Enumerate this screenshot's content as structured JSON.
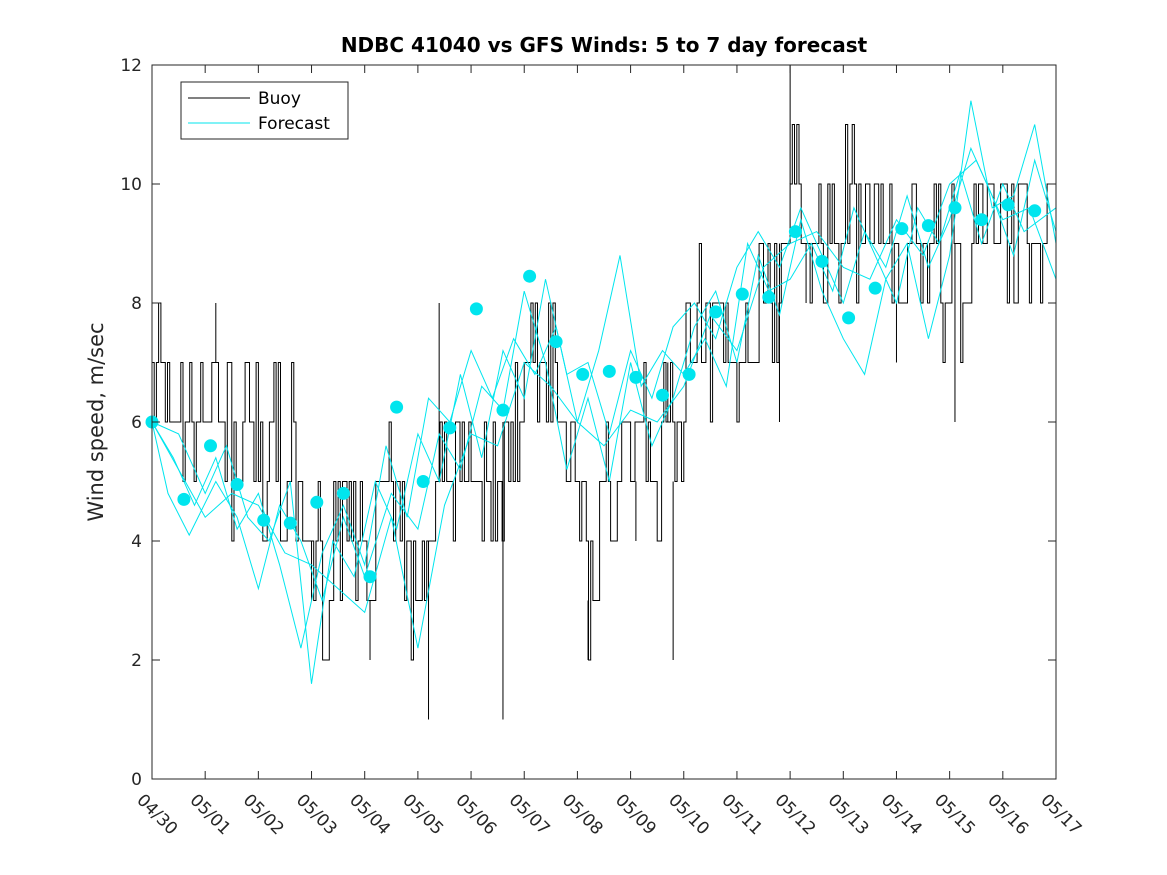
{
  "chart_data": {
    "type": "line",
    "title": "NDBC 41040 vs GFS Winds: 5 to 7 day forecast",
    "ylabel": "Wind speed, m/sec",
    "xlabel": "",
    "ylim": [
      0,
      12
    ],
    "yticks": [
      0,
      2,
      4,
      6,
      8,
      10,
      12
    ],
    "xlim_days": [
      0,
      17
    ],
    "xtick_labels": [
      "04/30",
      "05/01",
      "05/02",
      "05/03",
      "05/04",
      "05/05",
      "05/06",
      "05/07",
      "05/08",
      "05/09",
      "05/10",
      "05/11",
      "05/12",
      "05/13",
      "05/14",
      "05/15",
      "05/16",
      "05/17"
    ],
    "legend": {
      "position": "top-left",
      "entries": [
        "Buoy",
        "Forecast"
      ]
    },
    "colors": {
      "buoy": "#000000",
      "forecast": "#00e5ee",
      "axes": "#262626"
    },
    "buoy_step_levels": [
      [
        0.0,
        6
      ],
      [
        0.1,
        7
      ],
      [
        0.3,
        6
      ],
      [
        0.6,
        6
      ],
      [
        0.9,
        6
      ],
      [
        1.1,
        7
      ],
      [
        1.3,
        6
      ],
      [
        1.5,
        5
      ],
      [
        1.7,
        6
      ],
      [
        2.0,
        5
      ],
      [
        2.2,
        6
      ],
      [
        2.4,
        5
      ],
      [
        2.6,
        6
      ],
      [
        2.7,
        5
      ],
      [
        2.8,
        4
      ],
      [
        3.0,
        4
      ],
      [
        3.2,
        3
      ],
      [
        3.4,
        4
      ],
      [
        3.6,
        4
      ],
      [
        3.8,
        4
      ],
      [
        4.0,
        3
      ],
      [
        4.2,
        4
      ],
      [
        4.4,
        5
      ],
      [
        4.6,
        4
      ],
      [
        4.8,
        3
      ],
      [
        5.0,
        3
      ],
      [
        5.2,
        4
      ],
      [
        5.4,
        5
      ],
      [
        5.6,
        5
      ],
      [
        5.8,
        5
      ],
      [
        6.0,
        5
      ],
      [
        6.2,
        5
      ],
      [
        6.4,
        5
      ],
      [
        6.6,
        6
      ],
      [
        6.8,
        6
      ],
      [
        7.0,
        7
      ],
      [
        7.2,
        7
      ],
      [
        7.4,
        7
      ],
      [
        7.6,
        6
      ],
      [
        7.8,
        5
      ],
      [
        8.0,
        4
      ],
      [
        8.2,
        3
      ],
      [
        8.4,
        5
      ],
      [
        8.6,
        4
      ],
      [
        8.8,
        5
      ],
      [
        9.0,
        5
      ],
      [
        9.2,
        6
      ],
      [
        9.4,
        5
      ],
      [
        9.6,
        6
      ],
      [
        9.8,
        5
      ],
      [
        10.0,
        7
      ],
      [
        10.2,
        8
      ],
      [
        10.4,
        7
      ],
      [
        10.6,
        8
      ],
      [
        10.8,
        7
      ],
      [
        11.0,
        8
      ],
      [
        11.2,
        7
      ],
      [
        11.4,
        9
      ],
      [
        11.6,
        8
      ],
      [
        11.8,
        9
      ],
      [
        12.0,
        10
      ],
      [
        12.2,
        9
      ],
      [
        12.4,
        9
      ],
      [
        12.6,
        9
      ],
      [
        12.8,
        9
      ],
      [
        13.0,
        10
      ],
      [
        13.2,
        9
      ],
      [
        13.4,
        9
      ],
      [
        13.6,
        9
      ],
      [
        13.8,
        9
      ],
      [
        14.0,
        8
      ],
      [
        14.2,
        9
      ],
      [
        14.4,
        8
      ],
      [
        14.6,
        9
      ],
      [
        14.8,
        8
      ],
      [
        15.0,
        9
      ],
      [
        15.2,
        8
      ],
      [
        15.4,
        9
      ],
      [
        15.6,
        9
      ],
      [
        15.8,
        9
      ],
      [
        16.0,
        9
      ],
      [
        16.2,
        9
      ],
      [
        16.4,
        9
      ],
      [
        16.6,
        9
      ],
      [
        16.8,
        10
      ],
      [
        17.0,
        9
      ]
    ],
    "buoy_extremes": [
      [
        1.2,
        8
      ],
      [
        3.0,
        3
      ],
      [
        4.1,
        2
      ],
      [
        5.2,
        1
      ],
      [
        5.4,
        8
      ],
      [
        6.6,
        1
      ],
      [
        8.2,
        2
      ],
      [
        9.1,
        4
      ],
      [
        9.7,
        7
      ],
      [
        9.8,
        2
      ],
      [
        11.8,
        6
      ],
      [
        12.0,
        12
      ],
      [
        12.3,
        8
      ],
      [
        13.0,
        10
      ],
      [
        14.0,
        7
      ],
      [
        15.1,
        6
      ]
    ],
    "forecast_runs": [
      [
        [
          0.0,
          6.0
        ],
        [
          0.5,
          5.2
        ],
        [
          1.0,
          4.4
        ],
        [
          1.5,
          4.8
        ],
        [
          2.0,
          4.6
        ],
        [
          2.5,
          3.8
        ],
        [
          3.0,
          3.6
        ],
        [
          3.5,
          3.2
        ],
        [
          4.0,
          2.8
        ],
        [
          4.5,
          4.4
        ],
        [
          5.0,
          2.2
        ],
        [
          5.5,
          4.6
        ],
        [
          6.0,
          5.8
        ],
        [
          6.5,
          5.6
        ],
        [
          7.0,
          7.0
        ],
        [
          7.5,
          6.6
        ],
        [
          8.0,
          6.0
        ],
        [
          8.5,
          5.6
        ],
        [
          9.0,
          6.2
        ],
        [
          9.5,
          6.0
        ],
        [
          10.0,
          6.6
        ],
        [
          10.5,
          7.8
        ],
        [
          11.0,
          7.2
        ],
        [
          11.5,
          8.6
        ],
        [
          12.0,
          9.0
        ],
        [
          12.5,
          9.2
        ],
        [
          13.0,
          8.6
        ],
        [
          13.5,
          8.4
        ],
        [
          14.0,
          9.4
        ],
        [
          14.5,
          8.8
        ],
        [
          15.0,
          10.0
        ],
        [
          15.5,
          10.4
        ],
        [
          16.0,
          9.4
        ],
        [
          16.5,
          9.6
        ],
        [
          17.0,
          8.4
        ]
      ],
      [
        [
          0.0,
          6.0
        ],
        [
          0.3,
          4.8
        ],
        [
          0.7,
          4.1
        ],
        [
          1.2,
          5.0
        ],
        [
          1.6,
          4.4
        ],
        [
          2.0,
          3.2
        ],
        [
          2.4,
          4.6
        ],
        [
          2.8,
          4.0
        ],
        [
          3.2,
          3.0
        ],
        [
          3.6,
          4.4
        ],
        [
          4.0,
          3.4
        ],
        [
          4.5,
          4.8
        ],
        [
          5.0,
          4.2
        ],
        [
          5.4,
          5.8
        ],
        [
          5.8,
          5.2
        ],
        [
          6.2,
          6.6
        ],
        [
          6.6,
          6.2
        ],
        [
          7.0,
          8.2
        ],
        [
          7.4,
          7.0
        ],
        [
          7.8,
          5.2
        ],
        [
          8.2,
          6.4
        ],
        [
          8.6,
          5.0
        ],
        [
          9.0,
          7.0
        ],
        [
          9.4,
          5.6
        ],
        [
          9.8,
          6.4
        ],
        [
          10.2,
          7.6
        ],
        [
          10.6,
          8.2
        ],
        [
          11.0,
          7.0
        ],
        [
          11.4,
          8.8
        ],
        [
          11.8,
          7.8
        ],
        [
          12.2,
          9.4
        ],
        [
          12.6,
          8.2
        ],
        [
          13.0,
          7.4
        ],
        [
          13.4,
          6.8
        ],
        [
          13.8,
          8.4
        ],
        [
          14.2,
          9.0
        ],
        [
          14.6,
          7.4
        ],
        [
          15.0,
          8.8
        ],
        [
          15.4,
          11.4
        ],
        [
          15.8,
          9.6
        ],
        [
          16.2,
          9.8
        ],
        [
          16.6,
          11.0
        ],
        [
          17.0,
          9.0
        ]
      ],
      [
        [
          0.0,
          6.0
        ],
        [
          0.4,
          5.4
        ],
        [
          0.8,
          4.6
        ],
        [
          1.2,
          5.4
        ],
        [
          1.6,
          4.2
        ],
        [
          2.0,
          4.8
        ],
        [
          2.4,
          3.6
        ],
        [
          2.8,
          2.2
        ],
        [
          3.2,
          3.8
        ],
        [
          3.6,
          4.6
        ],
        [
          4.0,
          3.6
        ],
        [
          4.4,
          5.6
        ],
        [
          4.8,
          4.4
        ],
        [
          5.2,
          6.4
        ],
        [
          5.6,
          6.0
        ],
        [
          6.0,
          7.2
        ],
        [
          6.4,
          6.4
        ],
        [
          6.8,
          7.4
        ],
        [
          7.2,
          6.8
        ],
        [
          7.6,
          7.6
        ],
        [
          8.0,
          6.0
        ],
        [
          8.4,
          7.2
        ],
        [
          8.8,
          8.8
        ],
        [
          9.2,
          6.6
        ],
        [
          9.6,
          7.2
        ],
        [
          10.0,
          6.8
        ],
        [
          10.4,
          7.4
        ],
        [
          10.8,
          6.6
        ],
        [
          11.2,
          9.0
        ],
        [
          11.6,
          8.2
        ],
        [
          12.0,
          8.4
        ],
        [
          12.4,
          9.0
        ],
        [
          12.8,
          8.2
        ],
        [
          13.2,
          9.6
        ],
        [
          13.6,
          8.8
        ],
        [
          14.0,
          8.0
        ],
        [
          14.4,
          9.6
        ],
        [
          14.8,
          9.0
        ],
        [
          15.2,
          10.2
        ],
        [
          15.6,
          9.0
        ],
        [
          16.0,
          10.0
        ],
        [
          16.4,
          9.2
        ],
        [
          17.0,
          9.6
        ]
      ],
      [
        [
          0.0,
          6.0
        ],
        [
          0.5,
          5.8
        ],
        [
          1.0,
          4.8
        ],
        [
          1.4,
          5.6
        ],
        [
          1.8,
          4.4
        ],
        [
          2.2,
          4.0
        ],
        [
          2.6,
          5.0
        ],
        [
          3.0,
          1.6
        ],
        [
          3.4,
          4.0
        ],
        [
          3.8,
          3.4
        ],
        [
          4.2,
          5.0
        ],
        [
          4.6,
          4.2
        ],
        [
          5.0,
          5.8
        ],
        [
          5.4,
          5.0
        ],
        [
          5.8,
          6.8
        ],
        [
          6.2,
          5.4
        ],
        [
          6.6,
          7.2
        ],
        [
          7.0,
          6.4
        ],
        [
          7.4,
          8.4
        ],
        [
          7.8,
          6.8
        ],
        [
          8.2,
          7.0
        ],
        [
          8.6,
          5.8
        ],
        [
          9.0,
          7.2
        ],
        [
          9.4,
          6.4
        ],
        [
          9.8,
          7.6
        ],
        [
          10.2,
          8.0
        ],
        [
          10.6,
          7.4
        ],
        [
          11.0,
          8.6
        ],
        [
          11.4,
          9.2
        ],
        [
          11.8,
          8.6
        ],
        [
          12.2,
          9.6
        ],
        [
          12.6,
          8.8
        ],
        [
          13.0,
          8.0
        ],
        [
          13.4,
          9.2
        ],
        [
          13.8,
          8.6
        ],
        [
          14.2,
          9.8
        ],
        [
          14.6,
          8.6
        ],
        [
          15.0,
          9.4
        ],
        [
          15.4,
          10.6
        ],
        [
          15.8,
          9.8
        ],
        [
          16.2,
          8.8
        ],
        [
          16.6,
          10.4
        ],
        [
          17.0,
          9.2
        ]
      ]
    ],
    "forecast_daily_markers": [
      [
        0.0,
        6.0
      ],
      [
        0.6,
        4.7
      ],
      [
        1.1,
        5.6
      ],
      [
        1.6,
        4.95
      ],
      [
        2.1,
        4.35
      ],
      [
        2.6,
        4.3
      ],
      [
        3.1,
        4.65
      ],
      [
        3.6,
        4.8
      ],
      [
        4.1,
        3.4
      ],
      [
        4.6,
        6.25
      ],
      [
        5.1,
        5.0
      ],
      [
        5.6,
        5.9
      ],
      [
        6.1,
        7.9
      ],
      [
        6.6,
        6.2
      ],
      [
        7.1,
        8.45
      ],
      [
        7.6,
        7.35
      ],
      [
        8.1,
        6.8
      ],
      [
        8.6,
        6.85
      ],
      [
        9.1,
        6.75
      ],
      [
        9.6,
        6.45
      ],
      [
        10.1,
        6.8
      ],
      [
        10.6,
        7.85
      ],
      [
        11.1,
        8.15
      ],
      [
        11.6,
        8.1
      ],
      [
        12.1,
        9.2
      ],
      [
        12.6,
        8.7
      ],
      [
        13.1,
        7.75
      ],
      [
        13.6,
        8.25
      ],
      [
        14.1,
        9.25
      ],
      [
        14.6,
        9.3
      ],
      [
        15.1,
        9.6
      ],
      [
        15.6,
        9.4
      ],
      [
        16.1,
        9.65
      ],
      [
        16.6,
        9.55
      ]
    ]
  }
}
